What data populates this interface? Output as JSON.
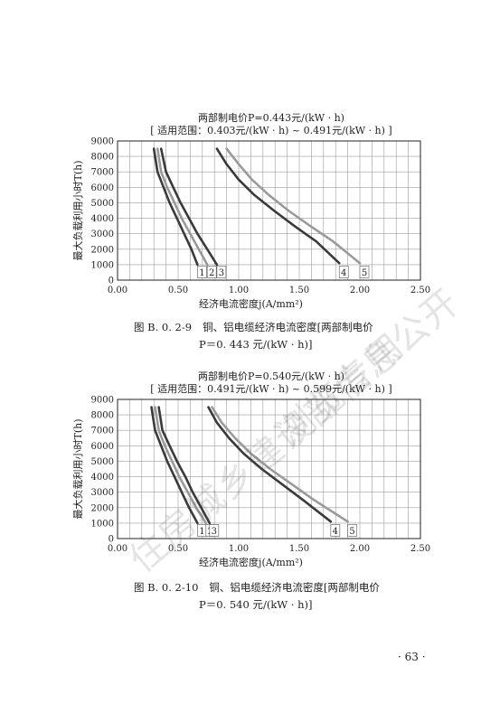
{
  "charts": [
    {
      "title_line1": "两部制电价P=0.443元/(kW · h)",
      "title_line2": "[ 适用范围：0.403元/(kW · h) ~ 0.491元/(kW · h) ]",
      "caption_number": "图 B. 0. 2-9",
      "caption_line1": "铜、铝电缆经济电流密度[两部制电价",
      "caption_line2": "P＝0. 443 元/(kW · h)]"
    },
    {
      "title_line1": "两部制电价P=0.540元/(kW · h)",
      "title_line2": "[ 适用范围：0.491元/(kW · h) ~ 0.599元/(kW · h) ]",
      "caption_number": "图 B. 0. 2-10",
      "caption_line1": "铜、铝电缆经济电流密度[两部制电价",
      "caption_line2": "P＝0. 540 元/(kW · h)]"
    }
  ],
  "page_number": "· 63 ·",
  "watermark_lines": [
    "住房城乡建设部信息公开",
    "浏览专用"
  ],
  "colors": {
    "dark": "#3a3a3a",
    "light": "#9a9a9a",
    "grid": "#9c9c9c",
    "axis": "#222222"
  },
  "chart_data": [
    {
      "type": "line",
      "xlabel": "经济电流密度j(A/mm²)",
      "ylabel": "最大负载利用小时T(h)",
      "xlim": [
        0,
        2.5
      ],
      "ylim": [
        0,
        9000
      ],
      "x_ticks": [
        "0.00",
        "0.50",
        "1.00",
        "1.50",
        "2.00",
        "2.50"
      ],
      "y_ticks": [
        "0",
        "1000",
        "2000",
        "3000",
        "4000",
        "5000",
        "6000",
        "7000",
        "8000",
        "9000"
      ],
      "grid": true,
      "series": [
        {
          "name": "1",
          "tone": "dark",
          "points": [
            [
              0.3,
              8500
            ],
            [
              0.33,
              7000
            ],
            [
              0.38,
              6000
            ],
            [
              0.43,
              5000
            ],
            [
              0.49,
              4000
            ],
            [
              0.55,
              3000
            ],
            [
              0.61,
              2000
            ],
            [
              0.66,
              1000
            ]
          ]
        },
        {
          "name": "2",
          "tone": "light",
          "points": [
            [
              0.33,
              8500
            ],
            [
              0.36,
              7000
            ],
            [
              0.41,
              6000
            ],
            [
              0.47,
              5000
            ],
            [
              0.53,
              4000
            ],
            [
              0.6,
              3000
            ],
            [
              0.67,
              2000
            ],
            [
              0.74,
              1000
            ]
          ]
        },
        {
          "name": "3",
          "tone": "dark",
          "points": [
            [
              0.36,
              8500
            ],
            [
              0.4,
              7000
            ],
            [
              0.46,
              6000
            ],
            [
              0.52,
              5000
            ],
            [
              0.59,
              4000
            ],
            [
              0.66,
              3000
            ],
            [
              0.74,
              2000
            ],
            [
              0.82,
              1000
            ]
          ]
        },
        {
          "name": "4",
          "tone": "dark",
          "points": [
            [
              0.82,
              8500
            ],
            [
              0.9,
              7500
            ],
            [
              1.0,
              6500
            ],
            [
              1.13,
              5500
            ],
            [
              1.29,
              4500
            ],
            [
              1.46,
              3500
            ],
            [
              1.64,
              2500
            ],
            [
              1.83,
              1100
            ]
          ]
        },
        {
          "name": "5",
          "tone": "light",
          "points": [
            [
              0.9,
              8500
            ],
            [
              1.0,
              7500
            ],
            [
              1.11,
              6500
            ],
            [
              1.25,
              5500
            ],
            [
              1.41,
              4500
            ],
            [
              1.59,
              3500
            ],
            [
              1.78,
              2500
            ],
            [
              2.0,
              1100
            ]
          ]
        }
      ]
    },
    {
      "type": "line",
      "xlabel": "经济电流密度j(A/mm²)",
      "ylabel": "最大负载利用小时T(h)",
      "xlim": [
        0,
        2.5
      ],
      "ylim": [
        0,
        9000
      ],
      "x_ticks": [
        "0.00",
        "0.50",
        "1.00",
        "1.50",
        "2.00",
        "2.50"
      ],
      "y_ticks": [
        "0",
        "1000",
        "2000",
        "3000",
        "4000",
        "5000",
        "6000",
        "7000",
        "8000",
        "9000"
      ],
      "grid": true,
      "series": [
        {
          "name": "1",
          "tone": "dark",
          "points": [
            [
              0.28,
              8500
            ],
            [
              0.31,
              7000
            ],
            [
              0.36,
              6000
            ],
            [
              0.41,
              5000
            ],
            [
              0.47,
              4000
            ],
            [
              0.53,
              3000
            ],
            [
              0.59,
              2000
            ],
            [
              0.66,
              1000
            ]
          ]
        },
        {
          "name": "2",
          "tone": "light",
          "points": [
            [
              0.31,
              8500
            ],
            [
              0.34,
              7000
            ],
            [
              0.39,
              6000
            ],
            [
              0.45,
              5000
            ],
            [
              0.51,
              4000
            ],
            [
              0.58,
              3000
            ],
            [
              0.65,
              2000
            ],
            [
              0.73,
              1000
            ]
          ]
        },
        {
          "name": "3",
          "tone": "dark",
          "points": [
            [
              0.34,
              8500
            ],
            [
              0.37,
              7000
            ],
            [
              0.43,
              6000
            ],
            [
              0.49,
              5000
            ],
            [
              0.56,
              4000
            ],
            [
              0.62,
              3000
            ],
            [
              0.69,
              2000
            ],
            [
              0.76,
              1000
            ]
          ]
        },
        {
          "name": "4",
          "tone": "dark",
          "points": [
            [
              0.75,
              8500
            ],
            [
              0.82,
              7500
            ],
            [
              0.92,
              6500
            ],
            [
              1.04,
              5500
            ],
            [
              1.19,
              4500
            ],
            [
              1.36,
              3500
            ],
            [
              1.53,
              2500
            ],
            [
              1.76,
              1100
            ]
          ]
        },
        {
          "name": "5",
          "tone": "light",
          "points": [
            [
              0.78,
              8500
            ],
            [
              0.86,
              7500
            ],
            [
              0.97,
              6500
            ],
            [
              1.1,
              5500
            ],
            [
              1.26,
              4500
            ],
            [
              1.44,
              3500
            ],
            [
              1.62,
              2500
            ],
            [
              1.9,
              1100
            ]
          ]
        }
      ]
    }
  ]
}
